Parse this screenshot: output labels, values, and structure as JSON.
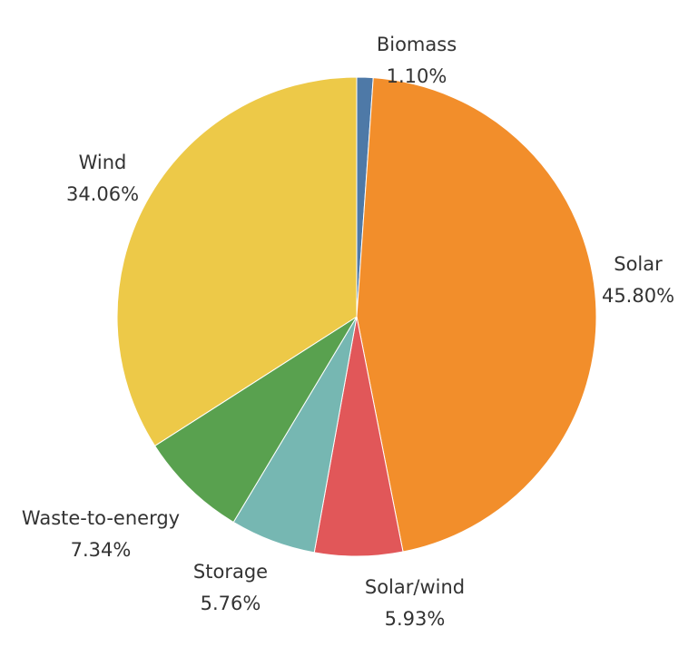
{
  "chart_data": {
    "type": "pie",
    "title": "",
    "slices": [
      {
        "label": "Biomass",
        "value": 1.1,
        "value_label": "1.10%",
        "color": "#4e79a7"
      },
      {
        "label": "Solar",
        "value": 45.8,
        "value_label": "45.80%",
        "color": "#f28e2b"
      },
      {
        "label": "Solar/wind",
        "value": 5.93,
        "value_label": "5.93%",
        "color": "#e15759"
      },
      {
        "label": "Storage",
        "value": 5.76,
        "value_label": "5.76%",
        "color": "#76b7b2"
      },
      {
        "label": "Waste-to-energy",
        "value": 7.34,
        "value_label": "7.34%",
        "color": "#59a14f"
      },
      {
        "label": "Wind",
        "value": 34.06,
        "value_label": "34.06%",
        "color": "#edc948"
      }
    ],
    "start_angle": "12 o'clock",
    "direction": "clockwise",
    "legend": "none"
  }
}
